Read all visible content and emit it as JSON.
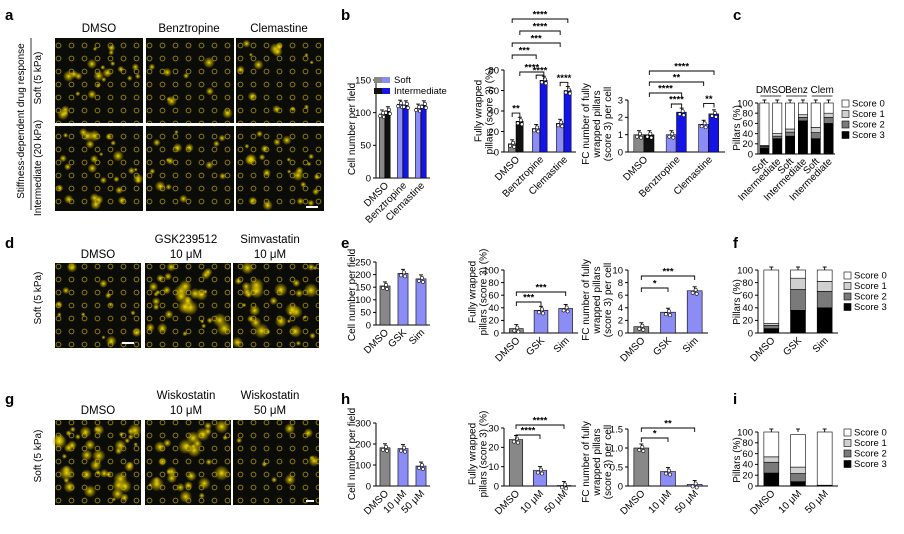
{
  "panels": {
    "a": "a",
    "b": "b",
    "c": "c",
    "d": "d",
    "e": "e",
    "f": "f",
    "g": "g",
    "h": "h",
    "i": "i"
  },
  "row1": {
    "side_title": "Stiffness-dependent drug response",
    "row_labels": [
      "Soft (5 kPa)",
      "Intermediate (20 kPa)"
    ],
    "headers": [
      "DMSO",
      "Benztropine",
      "Clemastine"
    ]
  },
  "row2": {
    "side_label": "Soft (5 kPa)",
    "headers": [
      "DMSO",
      "GSK239512\n10 μM",
      "Simvastatin\n10 μM"
    ]
  },
  "row3": {
    "side_label": "Soft (5 kPa)",
    "headers": [
      "DMSO",
      "Wiskostatin\n10 μM",
      "Wiskostatin\n50 μM"
    ]
  },
  "legend": {
    "soft": "Soft",
    "intermediate": "Intermediate"
  },
  "stack_legend": [
    "Score 0",
    "Score 1",
    "Score 2",
    "Score 3"
  ],
  "colors": {
    "soft_dark": "#888888",
    "soft_blue": "#8c8cf5",
    "inter_dark": "#111111",
    "inter_blue": "#1414e6",
    "score0": "#ffffff",
    "score1": "#d0d0d0",
    "score2": "#7a7a7a",
    "score3": "#000000",
    "micro_bg": "#0b0b08",
    "micro_fg": "#e6d000"
  },
  "chart_data": [
    {
      "id": "b1",
      "type": "bar",
      "ylabel": "Cell number per field",
      "categories": [
        "DMSO",
        "Benztropine",
        "Clemastine"
      ],
      "series": [
        {
          "name": "Soft",
          "values": [
            98,
            113,
            107
          ]
        },
        {
          "name": "Intermediate",
          "values": [
            103,
            112,
            112
          ]
        }
      ],
      "ylim": [
        0,
        150
      ],
      "yticks": [
        0,
        50,
        100,
        150
      ],
      "significance": []
    },
    {
      "id": "b2",
      "type": "bar",
      "ylabel": "Fully wrapped pillars (score 3) (%)",
      "categories": [
        "DMSO",
        "Benztropine",
        "Clemastine"
      ],
      "series": [
        {
          "name": "Soft",
          "values": [
            8,
            23,
            28
          ]
        },
        {
          "name": "Intermediate",
          "values": [
            30,
            70,
            60
          ]
        }
      ],
      "ylim": [
        0,
        80
      ],
      "yticks": [
        0,
        20,
        40,
        60,
        80
      ],
      "significance": [
        "**",
        "***",
        "***",
        "****",
        "****",
        "****",
        "****",
        "****"
      ]
    },
    {
      "id": "b3",
      "type": "bar",
      "ylabel": "FC number of fully wrapped pillars (score 3) per cell",
      "categories": [
        "DMSO",
        "Benztropine",
        "Clemastine"
      ],
      "series": [
        {
          "name": "Soft",
          "values": [
            1.0,
            1.0,
            1.6
          ]
        },
        {
          "name": "Intermediate",
          "values": [
            1.0,
            2.3,
            2.2
          ]
        }
      ],
      "ylim": [
        0,
        3
      ],
      "yticks": [
        0,
        1,
        2,
        3
      ],
      "significance": [
        "****",
        "**",
        "****",
        "****",
        "**"
      ]
    },
    {
      "id": "c",
      "type": "bar",
      "ylabel": "Pillars (%)",
      "categories": [
        "Soft",
        "Intermediate",
        "Soft",
        "Intermediate",
        "Soft",
        "Intermediate"
      ],
      "group_labels": [
        "DMSO",
        "Benz",
        "Clem"
      ],
      "yticks": [
        0,
        20,
        40,
        60,
        80,
        100
      ],
      "ylim": [
        0,
        100
      ],
      "series": [
        {
          "name": "Score 3",
          "values": [
            12,
            30,
            35,
            65,
            30,
            60
          ]
        },
        {
          "name": "Score 2",
          "values": [
            3,
            5,
            8,
            7,
            12,
            12
          ]
        },
        {
          "name": "Score 1",
          "values": [
            2,
            5,
            6,
            5,
            10,
            8
          ]
        },
        {
          "name": "Score 0",
          "values": [
            83,
            60,
            51,
            23,
            48,
            20
          ]
        }
      ]
    },
    {
      "id": "e1",
      "type": "bar",
      "ylabel": "Cell number per field",
      "categories": [
        "DMSO",
        "GSK",
        "Sim"
      ],
      "series": [
        {
          "name": "",
          "values": [
            155,
            205,
            183
          ]
        }
      ],
      "ylim": [
        0,
        250
      ],
      "yticks": [
        0,
        50,
        100,
        150,
        200,
        250
      ],
      "significance": []
    },
    {
      "id": "e2",
      "type": "bar",
      "ylabel": "Fully wrapped pillars (score 3) (%)",
      "categories": [
        "DMSO",
        "GSK",
        "Sim"
      ],
      "series": [
        {
          "name": "",
          "values": [
            7,
            36,
            39
          ]
        }
      ],
      "ylim": [
        0,
        100
      ],
      "yticks": [
        0,
        20,
        40,
        60,
        80,
        100
      ],
      "significance": [
        "***",
        "***"
      ]
    },
    {
      "id": "e3",
      "type": "bar",
      "ylabel": "FC number of fully wrapped pillars (score 3) per cell",
      "categories": [
        "DMSO",
        "GSK",
        "Sim"
      ],
      "series": [
        {
          "name": "",
          "values": [
            1.0,
            3.3,
            6.7
          ]
        }
      ],
      "ylim": [
        0,
        10
      ],
      "yticks": [
        0,
        2,
        4,
        6,
        8,
        10
      ],
      "significance": [
        "*",
        "***"
      ]
    },
    {
      "id": "f",
      "type": "bar",
      "ylabel": "Pillars (%)",
      "categories": [
        "DMSO",
        "GSK",
        "Sim"
      ],
      "yticks": [
        0,
        20,
        40,
        60,
        80,
        100
      ],
      "ylim": [
        0,
        100
      ],
      "series": [
        {
          "name": "Score 3",
          "values": [
            7,
            36,
            40
          ]
        },
        {
          "name": "Score 2",
          "values": [
            5,
            33,
            26
          ]
        },
        {
          "name": "Score 1",
          "values": [
            3,
            18,
            16
          ]
        },
        {
          "name": "Score 0",
          "values": [
            85,
            13,
            18
          ]
        }
      ]
    },
    {
      "id": "h1",
      "type": "bar",
      "ylabel": "Cell number per field",
      "categories": [
        "DMSO",
        "10 μM",
        "50 μM"
      ],
      "series": [
        {
          "name": "",
          "values": [
            182,
            178,
            95
          ]
        }
      ],
      "ylim": [
        0,
        300
      ],
      "yticks": [
        0,
        100,
        200,
        300
      ],
      "significance": []
    },
    {
      "id": "h2",
      "type": "bar",
      "ylabel": "Fully wrapped pillars (score 3) (%)",
      "categories": [
        "DMSO",
        "10 μM",
        "50 μM"
      ],
      "series": [
        {
          "name": "",
          "values": [
            24,
            8,
            0.3
          ]
        }
      ],
      "ylim": [
        0,
        30
      ],
      "yticks": [
        0,
        10,
        20,
        30
      ],
      "significance": [
        "****",
        "****"
      ]
    },
    {
      "id": "h3",
      "type": "bar",
      "ylabel": "FC number of fully wrapped pillars (score 3) per cell",
      "categories": [
        "DMSO",
        "10 μM",
        "50 μM"
      ],
      "series": [
        {
          "name": "",
          "values": [
            1.0,
            0.38,
            0.04
          ]
        }
      ],
      "ylim": [
        0,
        1.5
      ],
      "yticks": [
        0,
        0.5,
        1.0,
        1.5
      ],
      "significance": [
        "*",
        "**"
      ]
    },
    {
      "id": "i",
      "type": "bar",
      "ylabel": "Pillars (%)",
      "categories": [
        "DMSO",
        "10 μM",
        "50 μM"
      ],
      "yticks": [
        0,
        20,
        40,
        60,
        80,
        100
      ],
      "ylim": [
        0,
        100
      ],
      "series": [
        {
          "name": "Score 3",
          "values": [
            24,
            8,
            0.5
          ]
        },
        {
          "name": "Score 2",
          "values": [
            20,
            15,
            0.5
          ]
        },
        {
          "name": "Score 1",
          "values": [
            10,
            12,
            0.5
          ]
        },
        {
          "name": "Score 0",
          "values": [
            46,
            60,
            98.5
          ]
        }
      ]
    }
  ]
}
